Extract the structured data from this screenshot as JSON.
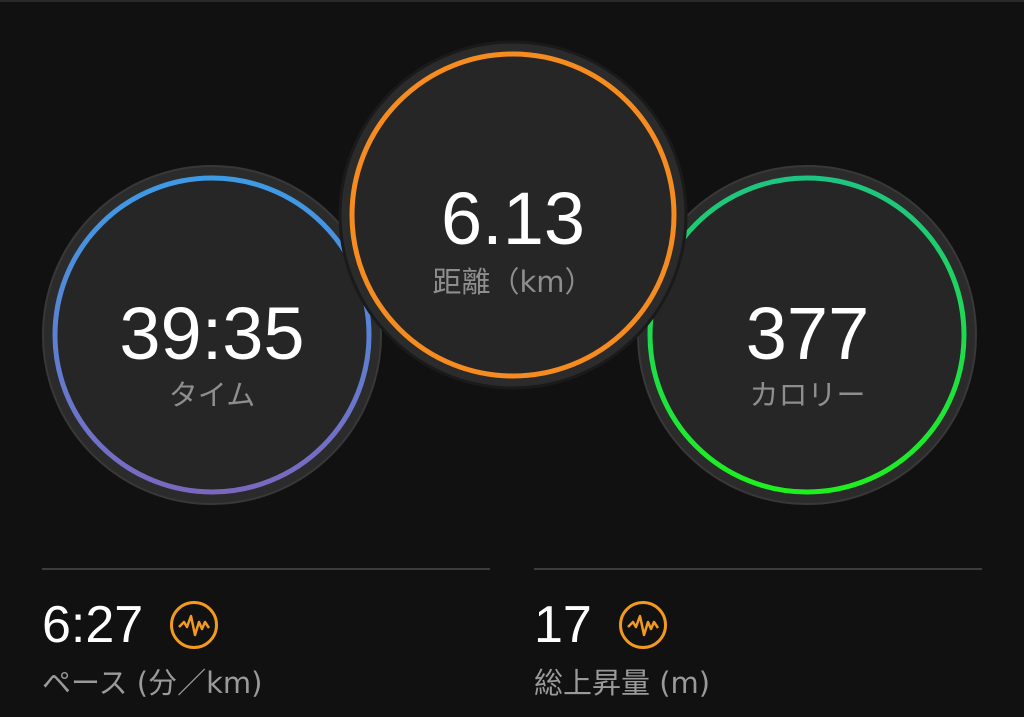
{
  "metrics": {
    "time": {
      "value": "39:35",
      "label": "タイム",
      "colors": [
        "#3d9be6",
        "#7a68c0"
      ]
    },
    "distance": {
      "value": "6.13",
      "label": "距離（km）",
      "colors": [
        "#f68c1f",
        "#f68c1f"
      ]
    },
    "calories": {
      "value": "377",
      "label": "カロリー",
      "colors": [
        "#1ec482",
        "#1ef01e"
      ]
    }
  },
  "stats": [
    {
      "value": "6:27",
      "label": "ペース (分／km)",
      "icon": "activity-pulse-icon",
      "icon_color": "#f29a1e"
    },
    {
      "value": "17",
      "label": "総上昇量 (m)",
      "icon": "activity-pulse-icon",
      "icon_color": "#f29a1e"
    }
  ]
}
